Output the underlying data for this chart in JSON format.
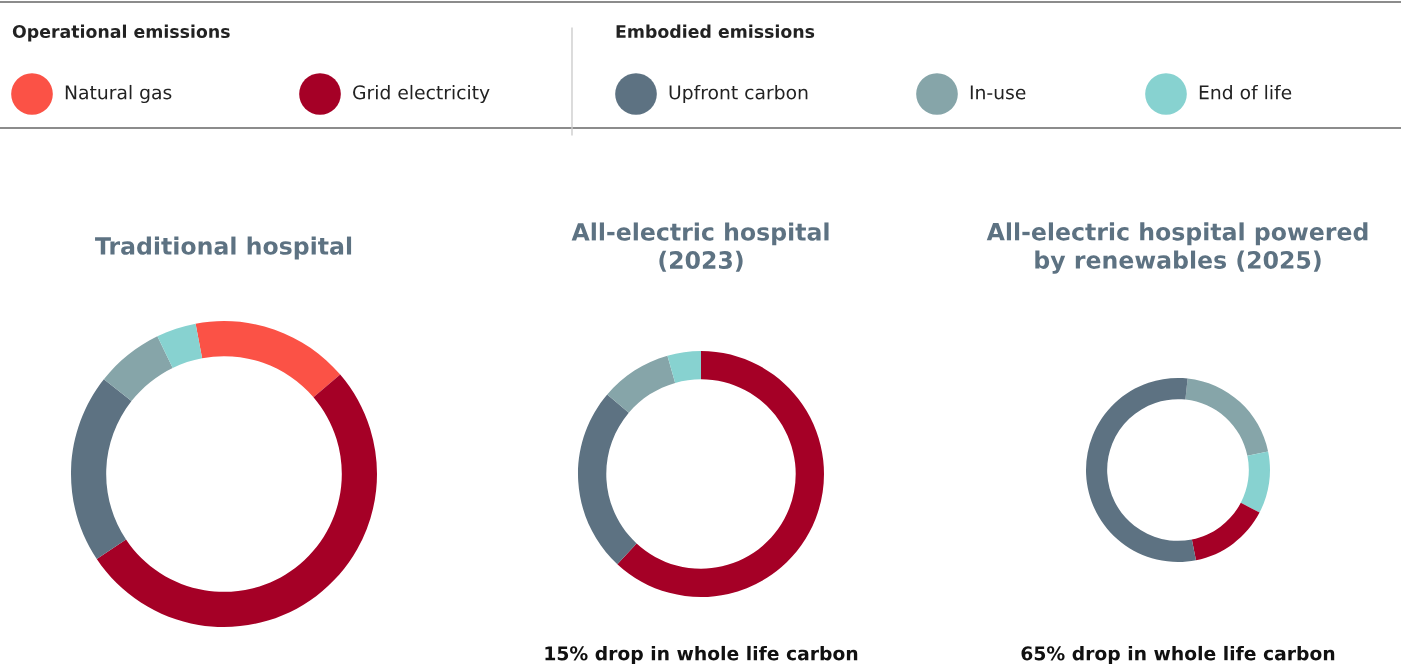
{
  "chart_data": [
    {
      "type": "donut",
      "title": "Traditional hospital",
      "categories": [
        "Natural gas",
        "Grid electricity",
        "Upfront carbon",
        "In-use",
        "End of life"
      ],
      "values": [
        16.7,
        51.9,
        20.0,
        7.2,
        4.2
      ],
      "colors": [
        "#fb5246",
        "#a50026",
        "#5d7282",
        "#86a5a9",
        "#87d2d0"
      ],
      "legend": "top",
      "annotations": [
        "Operational emissions",
        "Embodied emissions"
      ]
    },
    {
      "type": "donut",
      "title": "All-electric hospital\n(2023)",
      "categories": [
        null,
        null,
        null,
        null
      ],
      "values": [
        61.9,
        24.3,
        9.4,
        4.4
      ],
      "colors": [
        "#a50026",
        "#5d7282",
        "#86a5a9",
        "#87d2d0"
      ],
      "annotations": [
        "15% drop in whole life carbon"
      ]
    },
    {
      "type": "donut",
      "title": "All-electric hospital powered\nby renewables (2025)",
      "categories": [
        null,
        null,
        null,
        null
      ],
      "values": [
        20.1,
        10.9,
        14.2,
        54.8
      ],
      "colors": [
        "#86a5a9",
        "#87d2d0",
        "#a50026",
        "#5d7282"
      ],
      "annotations": [
        "65% drop in whole life carbon"
      ]
    }
  ]
}
